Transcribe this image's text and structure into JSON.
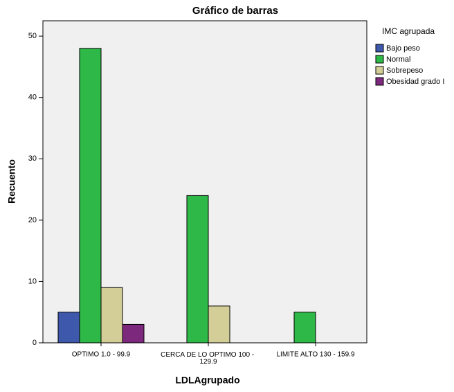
{
  "chart_data": {
    "type": "bar",
    "title": "Gráfico de barras",
    "x_label": "LDLAgrupado",
    "y_label": "Recuento",
    "legend_title": "IMC agrupada",
    "legend_position": "right",
    "categories": [
      "OPTIMO 1.0 - 99.9",
      "CERCA DE LO OPTIMO 100 - 129.9",
      "LIMITE ALTO 130 - 159.9"
    ],
    "series": [
      {
        "name": "Bajo peso",
        "color": "#3e58ac",
        "values": [
          5,
          null,
          null
        ]
      },
      {
        "name": "Normal",
        "color": "#2eb848",
        "values": [
          48,
          24,
          5
        ]
      },
      {
        "name": "Sobrepeso",
        "color": "#d3ce97",
        "values": [
          9,
          6,
          null
        ]
      },
      {
        "name": "Obesidad grado I",
        "color": "#7c287d",
        "values": [
          3,
          null,
          null
        ]
      }
    ],
    "ylim": [
      0,
      52.5
    ],
    "yticks": [
      0,
      10,
      20,
      30,
      40,
      50
    ],
    "grid": false
  }
}
